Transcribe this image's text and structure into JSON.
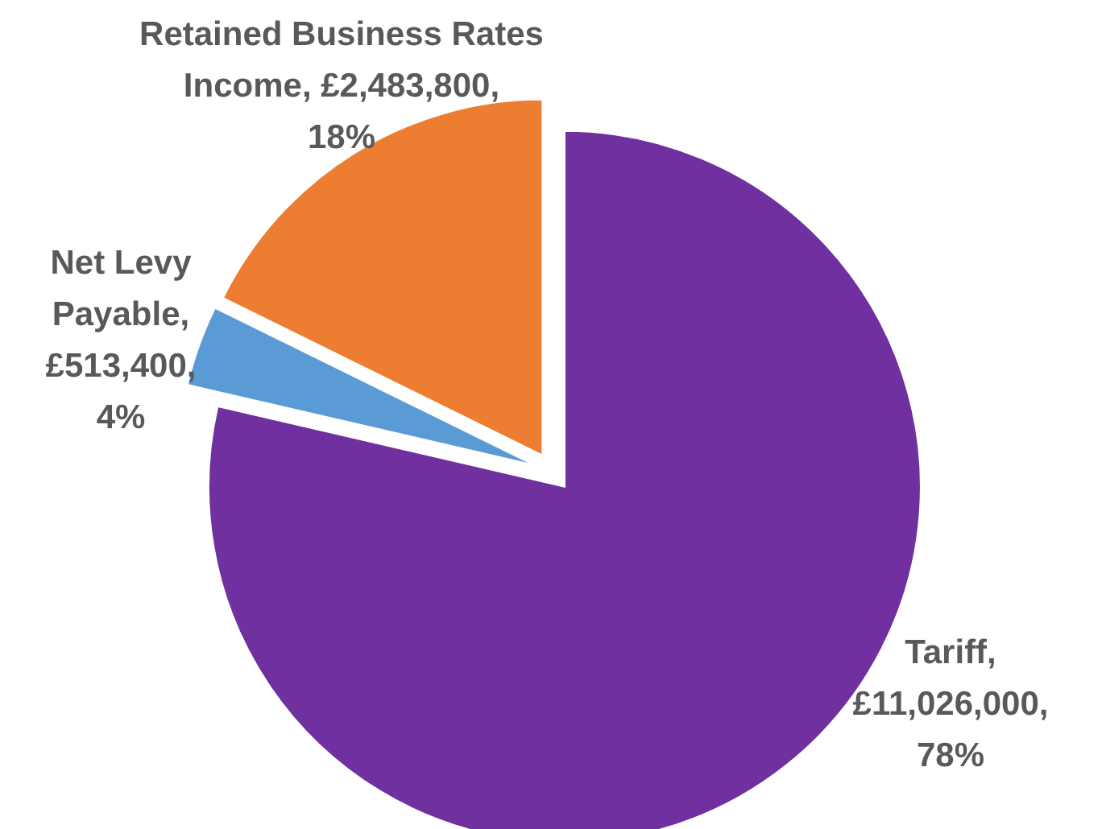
{
  "chart_data": {
    "type": "pie",
    "categories": [
      "Tariff",
      "Net Levy Payable",
      "Retained Business Rates Income"
    ],
    "values": [
      11026000,
      513400,
      2483800
    ],
    "value_labels": [
      ", £11,026,000, 78%",
      ", £513,400, 4%",
      ", £2,483,800, 18%"
    ],
    "colors": [
      "#7030a0",
      "#5b9bd5",
      "#ed7d31"
    ],
    "legend": false
  }
}
